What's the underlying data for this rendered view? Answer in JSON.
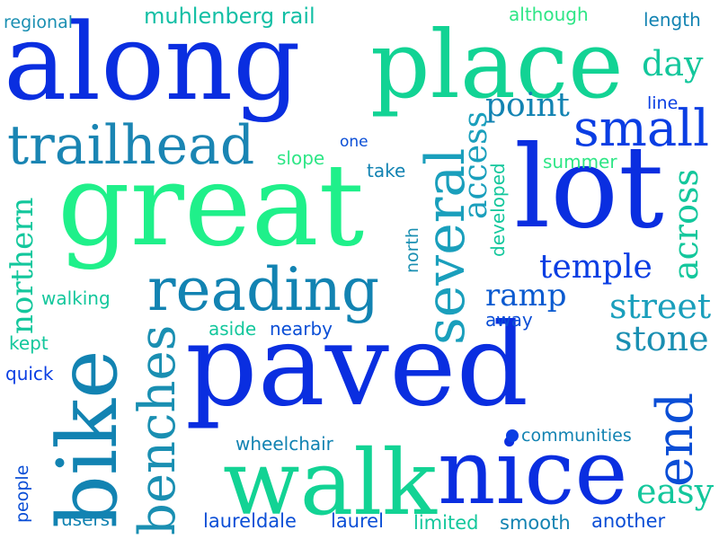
{
  "words": [
    {
      "text": "along",
      "color": "#0a2ee0"
    },
    {
      "text": "place",
      "color": "#12d394"
    },
    {
      "text": "great",
      "color": "#1ff08a"
    },
    {
      "text": "lot",
      "color": "#0a2ee0"
    },
    {
      "text": "paved",
      "color": "#0a2ee0"
    },
    {
      "text": "walk",
      "color": "#12d394"
    },
    {
      "text": "nice",
      "color": "#0a2ee0"
    },
    {
      "text": "bike",
      "color": "#1283b2"
    },
    {
      "text": "trailhead",
      "color": "#1a85b3"
    },
    {
      "text": "reading",
      "color": "#1283b2"
    },
    {
      "text": "several",
      "color": "#1a9fbc"
    },
    {
      "text": "small",
      "color": "#0a3ee3"
    },
    {
      "text": "benches",
      "color": "#1a8fb2"
    },
    {
      "text": "end",
      "color": "#0a4ed6"
    },
    {
      "text": "temple",
      "color": "#0a3ee3"
    },
    {
      "text": "ramp",
      "color": "#0a5ad0"
    },
    {
      "text": "street",
      "color": "#1a9fbc"
    },
    {
      "text": "stone",
      "color": "#1a8fb2"
    },
    {
      "text": "easy",
      "color": "#13c79c"
    },
    {
      "text": "across",
      "color": "#13c79c"
    },
    {
      "text": "access",
      "color": "#1a9fbc"
    },
    {
      "text": "point",
      "color": "#1283b2"
    },
    {
      "text": "day",
      "color": "#13c79c"
    },
    {
      "text": "northern",
      "color": "#13c79c"
    },
    {
      "text": "muhlenberg rail",
      "color": "#13bfa5"
    },
    {
      "text": "regional",
      "color": "#1a8fb2"
    },
    {
      "text": "although",
      "color": "#2ee686"
    },
    {
      "text": "length",
      "color": "#1283b2"
    },
    {
      "text": "line",
      "color": "#0a3ee3"
    },
    {
      "text": "one",
      "color": "#0a4ed6"
    },
    {
      "text": "slope",
      "color": "#2ee686"
    },
    {
      "text": "take",
      "color": "#1283b2"
    },
    {
      "text": "summer",
      "color": "#2ee686"
    },
    {
      "text": "developed",
      "color": "#13c79c"
    },
    {
      "text": "north",
      "color": "#1a8fb2"
    },
    {
      "text": "walking",
      "color": "#13c79c"
    },
    {
      "text": "kept",
      "color": "#13c79c"
    },
    {
      "text": "quick",
      "color": "#0a3ee3"
    },
    {
      "text": "aside",
      "color": "#13c79c"
    },
    {
      "text": "nearby",
      "color": "#0a4ed6"
    },
    {
      "text": "away",
      "color": "#0a4ed6"
    },
    {
      "text": "wheelchair",
      "color": "#1283b2"
    },
    {
      "text": "communities",
      "color": "#1283b2"
    },
    {
      "text": "people",
      "color": "#0a4ed6"
    },
    {
      "text": "users",
      "color": "#1283b2"
    },
    {
      "text": "laureldale",
      "color": "#0a4ed6"
    },
    {
      "text": "laurel",
      "color": "#0a4ed6"
    },
    {
      "text": "limited",
      "color": "#13c79c"
    },
    {
      "text": "smooth",
      "color": "#1283b2"
    },
    {
      "text": "another",
      "color": "#0a4ed6"
    }
  ]
}
